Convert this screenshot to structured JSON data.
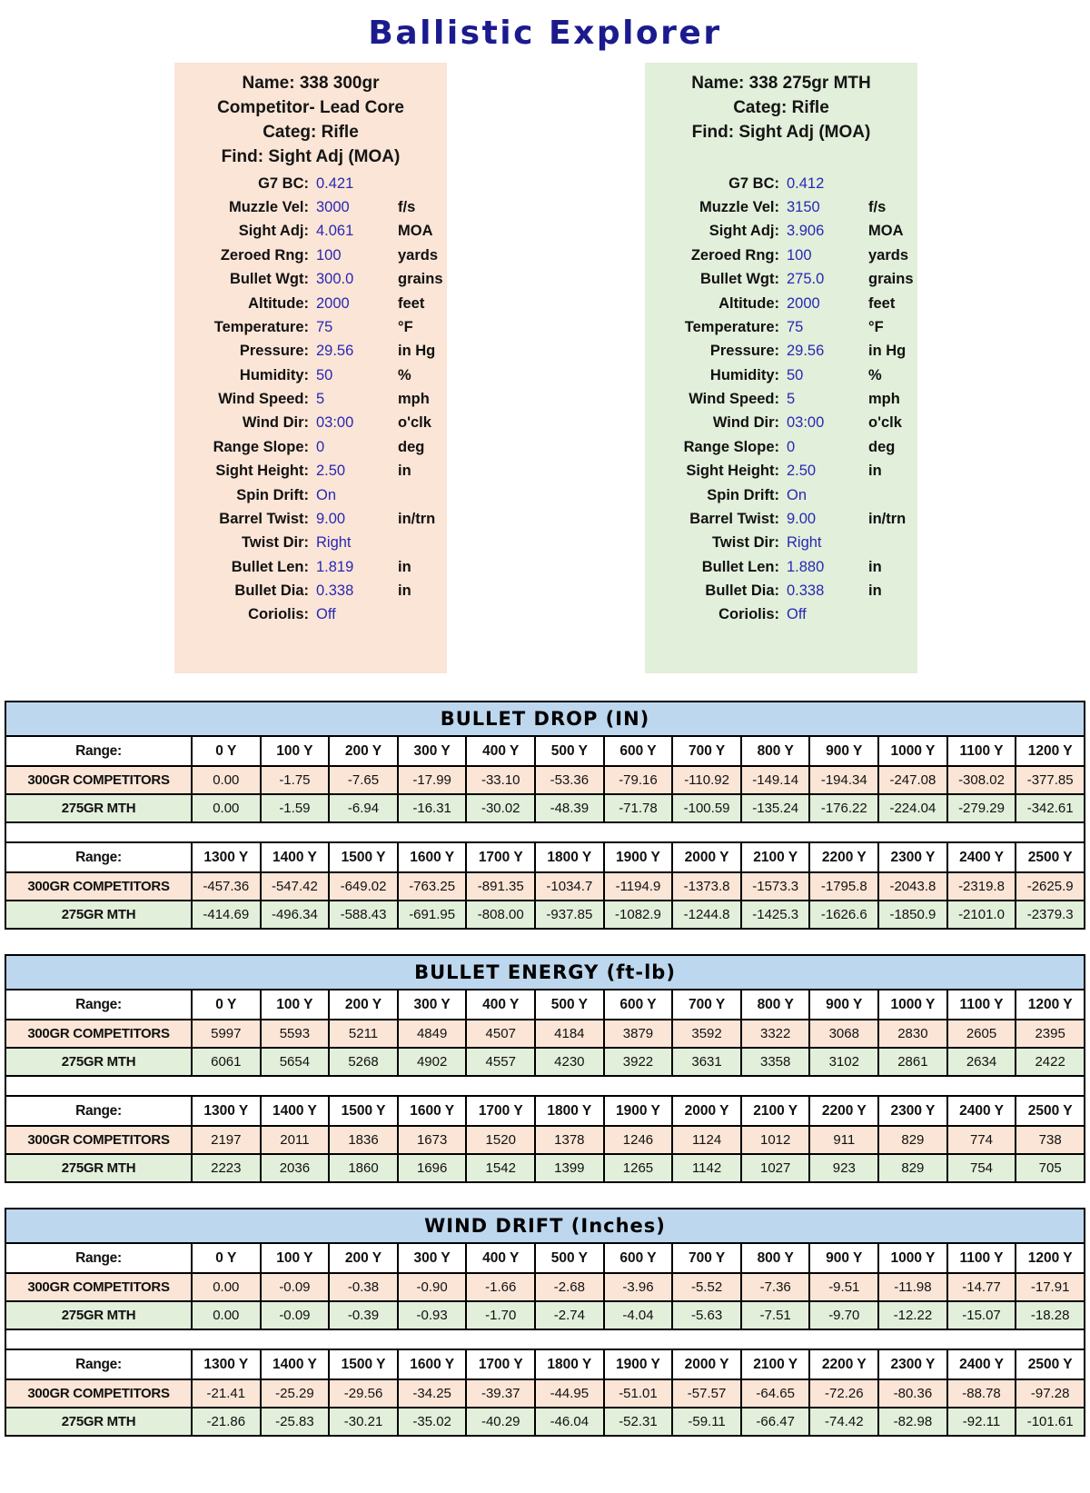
{
  "title": "Ballistic Explorer",
  "colors": {
    "accent_navy": "#1b1b8e",
    "panel_peach": "#fbe5d6",
    "panel_green": "#e2efda",
    "table_header_blue": "#bdd7ee",
    "value_blue": "#2828b4"
  },
  "range_label": "Range:",
  "profiles": [
    {
      "id": "300gr-competitor",
      "header_lines": [
        "Name: 338 300gr",
        "Competitor- Lead Core",
        "Categ: Rifle",
        "Find: Sight Adj (MOA)"
      ],
      "params": [
        {
          "label": "G7 BC:",
          "value": "0.421",
          "unit": ""
        },
        {
          "label": "Muzzle Vel:",
          "value": "3000",
          "unit": "f/s"
        },
        {
          "label": "Sight Adj:",
          "value": "4.061",
          "unit": "MOA"
        },
        {
          "label": "Zeroed Rng:",
          "value": "100",
          "unit": "yards"
        },
        {
          "label": "Bullet Wgt:",
          "value": "300.0",
          "unit": "grains"
        },
        {
          "label": "Altitude:",
          "value": "2000",
          "unit": "feet"
        },
        {
          "label": "Temperature:",
          "value": "75",
          "unit": "°F"
        },
        {
          "label": "Pressure:",
          "value": "29.56",
          "unit": "in Hg"
        },
        {
          "label": "Humidity:",
          "value": "50",
          "unit": "%"
        },
        {
          "label": "Wind Speed:",
          "value": "5",
          "unit": "mph"
        },
        {
          "label": "Wind Dir:",
          "value": "03:00",
          "unit": "o'clk"
        },
        {
          "label": "Range Slope:",
          "value": "0",
          "unit": "deg"
        },
        {
          "label": "Sight Height:",
          "value": "2.50",
          "unit": "in"
        },
        {
          "label": "Spin Drift:",
          "value": "On",
          "unit": ""
        },
        {
          "label": "Barrel Twist:",
          "value": "9.00",
          "unit": "in/trn"
        },
        {
          "label": "Twist Dir:",
          "value": "Right",
          "unit": ""
        },
        {
          "label": "Bullet Len:",
          "value": "1.819",
          "unit": "in"
        },
        {
          "label": "Bullet Dia:",
          "value": "0.338",
          "unit": "in"
        },
        {
          "label": "Coriolis:",
          "value": "Off",
          "unit": ""
        }
      ]
    },
    {
      "id": "275gr-mth",
      "header_lines": [
        "Name: 338 275gr MTH",
        "Categ: Rifle",
        "Find: Sight Adj (MOA)"
      ],
      "params": [
        {
          "label": "G7 BC:",
          "value": "0.412",
          "unit": ""
        },
        {
          "label": "Muzzle Vel:",
          "value": "3150",
          "unit": "f/s"
        },
        {
          "label": "Sight Adj:",
          "value": "3.906",
          "unit": "MOA"
        },
        {
          "label": "Zeroed Rng:",
          "value": "100",
          "unit": "yards"
        },
        {
          "label": "Bullet Wgt:",
          "value": "275.0",
          "unit": "grains"
        },
        {
          "label": "Altitude:",
          "value": "2000",
          "unit": "feet"
        },
        {
          "label": "Temperature:",
          "value": "75",
          "unit": "°F"
        },
        {
          "label": "Pressure:",
          "value": "29.56",
          "unit": "in Hg"
        },
        {
          "label": "Humidity:",
          "value": "50",
          "unit": "%"
        },
        {
          "label": "Wind Speed:",
          "value": "5",
          "unit": "mph"
        },
        {
          "label": "Wind Dir:",
          "value": "03:00",
          "unit": "o'clk"
        },
        {
          "label": "Range Slope:",
          "value": "0",
          "unit": "deg"
        },
        {
          "label": "Sight Height:",
          "value": "2.50",
          "unit": "in"
        },
        {
          "label": "Spin Drift:",
          "value": "On",
          "unit": ""
        },
        {
          "label": "Barrel Twist:",
          "value": "9.00",
          "unit": "in/trn"
        },
        {
          "label": "Twist Dir:",
          "value": "Right",
          "unit": ""
        },
        {
          "label": "Bullet Len:",
          "value": "1.880",
          "unit": "in"
        },
        {
          "label": "Bullet Dia:",
          "value": "0.338",
          "unit": "in"
        },
        {
          "label": "Coriolis:",
          "value": "Off",
          "unit": ""
        }
      ]
    }
  ],
  "tables": [
    {
      "title": "BULLET DROP (IN)",
      "blocks": [
        {
          "ranges": [
            "0 Y",
            "100 Y",
            "200 Y",
            "300 Y",
            "400 Y",
            "500 Y",
            "600 Y",
            "700 Y",
            "800 Y",
            "900 Y",
            "1000 Y",
            "1100 Y",
            "1200 Y"
          ],
          "rows": [
            {
              "label": "300GR COMPETITORS",
              "values": [
                "0.00",
                "-1.75",
                "-7.65",
                "-17.99",
                "-33.10",
                "-53.36",
                "-79.16",
                "-110.92",
                "-149.14",
                "-194.34",
                "-247.08",
                "-308.02",
                "-377.85"
              ]
            },
            {
              "label": "275GR MTH",
              "values": [
                "0.00",
                "-1.59",
                "-6.94",
                "-16.31",
                "-30.02",
                "-48.39",
                "-71.78",
                "-100.59",
                "-135.24",
                "-176.22",
                "-224.04",
                "-279.29",
                "-342.61"
              ]
            }
          ]
        },
        {
          "ranges": [
            "1300 Y",
            "1400 Y",
            "1500 Y",
            "1600 Y",
            "1700 Y",
            "1800 Y",
            "1900 Y",
            "2000 Y",
            "2100 Y",
            "2200 Y",
            "2300 Y",
            "2400 Y",
            "2500 Y"
          ],
          "rows": [
            {
              "label": "300GR COMPETITORS",
              "values": [
                "-457.36",
                "-547.42",
                "-649.02",
                "-763.25",
                "-891.35",
                "-1034.7",
                "-1194.9",
                "-1373.8",
                "-1573.3",
                "-1795.8",
                "-2043.8",
                "-2319.8",
                "-2625.9"
              ]
            },
            {
              "label": "275GR MTH",
              "values": [
                "-414.69",
                "-496.34",
                "-588.43",
                "-691.95",
                "-808.00",
                "-937.85",
                "-1082.9",
                "-1244.8",
                "-1425.3",
                "-1626.6",
                "-1850.9",
                "-2101.0",
                "-2379.3"
              ]
            }
          ]
        }
      ]
    },
    {
      "title": "BULLET ENERGY (ft-lb)",
      "blocks": [
        {
          "ranges": [
            "0 Y",
            "100 Y",
            "200 Y",
            "300 Y",
            "400 Y",
            "500 Y",
            "600 Y",
            "700 Y",
            "800 Y",
            "900 Y",
            "1000 Y",
            "1100 Y",
            "1200 Y"
          ],
          "rows": [
            {
              "label": "300GR COMPETITORS",
              "values": [
                "5997",
                "5593",
                "5211",
                "4849",
                "4507",
                "4184",
                "3879",
                "3592",
                "3322",
                "3068",
                "2830",
                "2605",
                "2395"
              ]
            },
            {
              "label": "275GR MTH",
              "values": [
                "6061",
                "5654",
                "5268",
                "4902",
                "4557",
                "4230",
                "3922",
                "3631",
                "3358",
                "3102",
                "2861",
                "2634",
                "2422"
              ]
            }
          ]
        },
        {
          "ranges": [
            "1300 Y",
            "1400 Y",
            "1500 Y",
            "1600 Y",
            "1700 Y",
            "1800 Y",
            "1900 Y",
            "2000 Y",
            "2100 Y",
            "2200 Y",
            "2300 Y",
            "2400 Y",
            "2500 Y"
          ],
          "rows": [
            {
              "label": "300GR COMPETITORS",
              "values": [
                "2197",
                "2011",
                "1836",
                "1673",
                "1520",
                "1378",
                "1246",
                "1124",
                "1012",
                "911",
                "829",
                "774",
                "738"
              ]
            },
            {
              "label": "275GR MTH",
              "values": [
                "2223",
                "2036",
                "1860",
                "1696",
                "1542",
                "1399",
                "1265",
                "1142",
                "1027",
                "923",
                "829",
                "754",
                "705"
              ]
            }
          ]
        }
      ]
    },
    {
      "title": "WIND DRIFT (Inches)",
      "blocks": [
        {
          "ranges": [
            "0 Y",
            "100 Y",
            "200 Y",
            "300 Y",
            "400 Y",
            "500 Y",
            "600 Y",
            "700 Y",
            "800 Y",
            "900 Y",
            "1000 Y",
            "1100 Y",
            "1200 Y"
          ],
          "rows": [
            {
              "label": "300GR COMPETITORS",
              "values": [
                "0.00",
                "-0.09",
                "-0.38",
                "-0.90",
                "-1.66",
                "-2.68",
                "-3.96",
                "-5.52",
                "-7.36",
                "-9.51",
                "-11.98",
                "-14.77",
                "-17.91"
              ]
            },
            {
              "label": "275GR MTH",
              "values": [
                "0.00",
                "-0.09",
                "-0.39",
                "-0.93",
                "-1.70",
                "-2.74",
                "-4.04",
                "-5.63",
                "-7.51",
                "-9.70",
                "-12.22",
                "-15.07",
                "-18.28"
              ]
            }
          ]
        },
        {
          "ranges": [
            "1300 Y",
            "1400 Y",
            "1500 Y",
            "1600 Y",
            "1700 Y",
            "1800 Y",
            "1900 Y",
            "2000 Y",
            "2100 Y",
            "2200 Y",
            "2300 Y",
            "2400 Y",
            "2500 Y"
          ],
          "rows": [
            {
              "label": "300GR COMPETITORS",
              "values": [
                "-21.41",
                "-25.29",
                "-29.56",
                "-34.25",
                "-39.37",
                "-44.95",
                "-51.01",
                "-57.57",
                "-64.65",
                "-72.26",
                "-80.36",
                "-88.78",
                "-97.28"
              ]
            },
            {
              "label": "275GR MTH",
              "values": [
                "-21.86",
                "-25.83",
                "-30.21",
                "-35.02",
                "-40.29",
                "-46.04",
                "-52.31",
                "-59.11",
                "-66.47",
                "-74.42",
                "-82.98",
                "-92.11",
                "-101.61"
              ]
            }
          ]
        }
      ]
    }
  ]
}
